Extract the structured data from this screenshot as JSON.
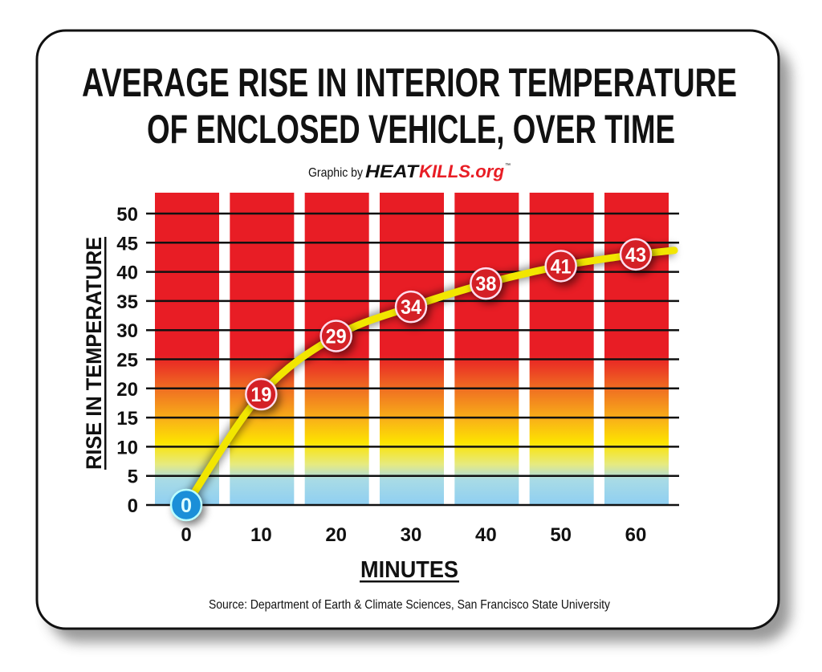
{
  "chart_data": {
    "type": "line",
    "title": [
      "AVERAGE RISE IN INTERIOR TEMPERATURE",
      "OF ENCLOSED VEHICLE, OVER TIME"
    ],
    "subtitle_prefix": "Graphic by",
    "brand": {
      "part1": "HEAT",
      "part2": "KILLS.org",
      "tm": "™"
    },
    "xlabel": "MINUTES",
    "ylabel": "RISE IN TEMPERATURE",
    "source": "Source: Department of Earth & Climate Sciences, San Francisco State University",
    "x": [
      0,
      10,
      20,
      30,
      40,
      50,
      60
    ],
    "x_tick_labels": [
      "0",
      "10",
      "20",
      "30",
      "40",
      "50",
      "60"
    ],
    "y_tick_labels": [
      "0",
      "5",
      "10",
      "15",
      "20",
      "25",
      "30",
      "35",
      "40",
      "45",
      "50"
    ],
    "values": [
      0,
      19,
      29,
      34,
      38,
      41,
      43
    ],
    "data_labels": [
      "0",
      "19",
      "29",
      "34",
      "38",
      "41",
      "43"
    ],
    "ylim": [
      0,
      50
    ],
    "xlim": [
      0,
      60
    ],
    "grid": "horizontal",
    "colors": {
      "line": "#f2e600",
      "marker": "#d42026",
      "first_marker": "#1b8fd8",
      "bar_top": "#e81d25",
      "text": "#111111",
      "brand_red": "#e81d25"
    }
  }
}
